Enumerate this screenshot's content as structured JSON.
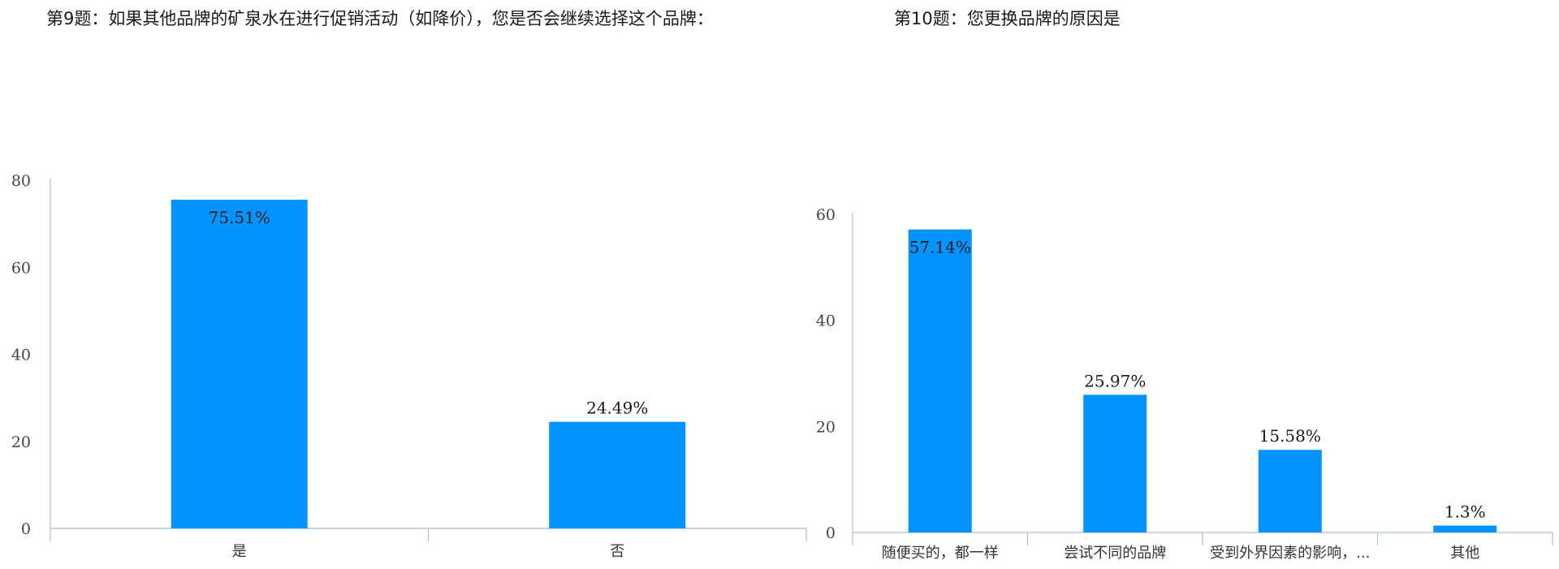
{
  "chart_data": [
    {
      "type": "bar",
      "title": "第9题：如果其他品牌的矿泉水在进行促销活动（如降价），您是否会继续选择这个品牌：",
      "categories": [
        "是",
        "否"
      ],
      "values": [
        75.51,
        24.49
      ],
      "data_labels": [
        "75.51%",
        "24.49%"
      ],
      "ylim": [
        0,
        80
      ],
      "yticks": [
        "0",
        "20",
        "40",
        "60",
        "80"
      ],
      "grid": false,
      "bar_color": "#0593ff"
    },
    {
      "type": "bar",
      "title": "第10题：您更换品牌的原因是",
      "categories": [
        "随便买的，都一样",
        "尝试不同的品牌",
        "受到外界因素的影响，...",
        "其他"
      ],
      "values": [
        57.14,
        25.97,
        15.58,
        1.3
      ],
      "data_labels": [
        "57.14%",
        "25.97%",
        "15.58%",
        "1.3%"
      ],
      "ylim": [
        0,
        60
      ],
      "yticks": [
        "0",
        "20",
        "40",
        "60"
      ],
      "grid": false,
      "bar_color": "#0593ff"
    }
  ]
}
